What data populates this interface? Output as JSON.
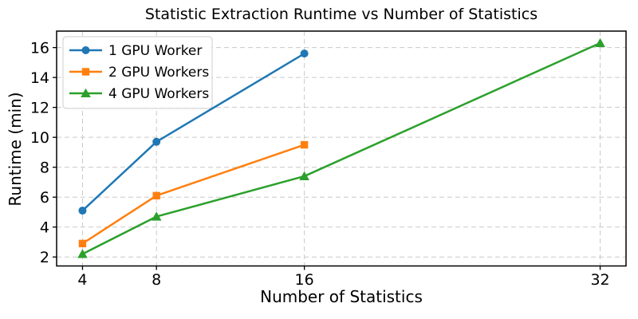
{
  "chart_data": {
    "type": "line",
    "title": "Statistic Extraction Runtime vs Number of Statistics",
    "xlabel": "Number of Statistics",
    "ylabel": "Runtime (min)",
    "x_ticks": [
      4,
      8,
      16,
      32
    ],
    "y_ticks": [
      2,
      4,
      6,
      8,
      10,
      12,
      14,
      16
    ],
    "xlim": [
      2.6,
      33.4
    ],
    "ylim": [
      1.4,
      17.1
    ],
    "grid": true,
    "grid_style": "dashed",
    "legend_position": "upper-left",
    "series": [
      {
        "name": "1 GPU Worker",
        "color": "#1f77b4",
        "marker": "circle",
        "x": [
          4,
          8,
          16
        ],
        "y": [
          5.1,
          9.7,
          15.6
        ]
      },
      {
        "name": "2 GPU Workers",
        "color": "#ff7f0e",
        "marker": "square",
        "x": [
          4,
          8,
          16
        ],
        "y": [
          2.9,
          6.1,
          9.5
        ]
      },
      {
        "name": "4 GPU Workers",
        "color": "#2ca02c",
        "marker": "triangle",
        "x": [
          4,
          8,
          16,
          32
        ],
        "y": [
          2.2,
          4.7,
          7.4,
          16.3
        ]
      }
    ],
    "colors": {
      "grid": "#c9c9c9",
      "spine": "#000000",
      "legend_border": "#cccccc",
      "background": "#ffffff"
    }
  }
}
